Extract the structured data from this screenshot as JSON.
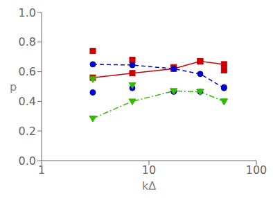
{
  "chart_data": {
    "type": "line",
    "xlabel": "kΔ",
    "ylabel": "p",
    "log": "x",
    "xlim": [
      1,
      100
    ],
    "xticks": [
      1,
      10,
      100
    ],
    "ylim": [
      0,
      1
    ],
    "yticks": [
      {
        "value": 0,
        "label": "0.0"
      },
      0.2,
      0.4,
      0.6,
      0.8,
      {
        "value": 1.0,
        "label": "1.0"
      }
    ],
    "x": [
      3,
      7,
      17,
      30,
      50
    ],
    "series": [
      {
        "color": "#cc0000",
        "line_style": "solid",
        "marker": "square",
        "values": [
          0.56,
          0.59,
          0.62,
          0.67,
          0.65
        ]
      },
      {
        "color": "#cc0000",
        "line_style": "none",
        "marker": "square",
        "values": [
          0.74,
          0.68,
          0.63,
          0.67,
          0.61
        ]
      },
      {
        "color": "#0000cc",
        "line_style": "dashed",
        "marker": "circle",
        "values": [
          0.65,
          0.645,
          0.62,
          0.585,
          0.49
        ]
      },
      {
        "color": "#0000cc",
        "line_style": "none",
        "marker": "circle",
        "values": [
          0.46,
          0.49,
          0.465,
          0.465,
          0.495
        ]
      },
      {
        "color": "#33bb00",
        "line_style": "dashdot",
        "marker": "triangle_down",
        "values": [
          0.285,
          0.4,
          0.47,
          0.465,
          0.4
        ]
      },
      {
        "color": "#33bb00",
        "line_style": "none",
        "marker": "triangle_down",
        "values": [
          0.55,
          0.51,
          0.47,
          0.465,
          0.4
        ]
      }
    ]
  }
}
